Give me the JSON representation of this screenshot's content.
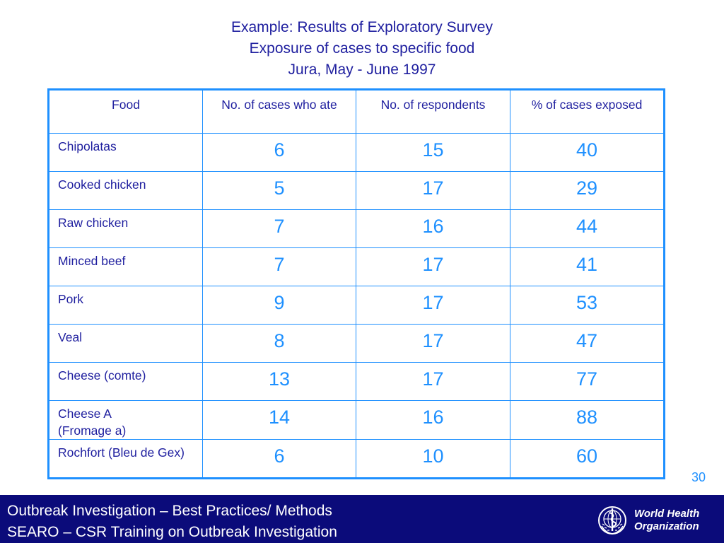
{
  "title_lines": [
    "Example: Results of Exploratory Survey",
    "Exposure of cases to specific food",
    "Jura, May - June 1997"
  ],
  "table": {
    "headers": [
      "Food",
      "No. of cases   who ate",
      "No. of respondents",
      "% of cases exposed"
    ],
    "rows": [
      {
        "food": "Chipolatas",
        "cases": "6",
        "respondents": "15",
        "pct": "40"
      },
      {
        "food": "Cooked chicken",
        "cases": "5",
        "respondents": "17",
        "pct": "29"
      },
      {
        "food": "Raw chicken",
        "cases": "7",
        "respondents": "16",
        "pct": "44"
      },
      {
        "food": "Minced beef",
        "cases": "7",
        "respondents": "17",
        "pct": "41"
      },
      {
        "food": "Pork",
        "cases": "9",
        "respondents": "17",
        "pct": "53"
      },
      {
        "food": "Veal",
        "cases": "8",
        "respondents": "17",
        "pct": "47"
      },
      {
        "food": "Cheese (comte)",
        "cases": "13",
        "respondents": "17",
        "pct": "77"
      },
      {
        "food": "Cheese A (Fromage a)",
        "cases": "14",
        "respondents": "16",
        "pct": "88"
      },
      {
        "food": "Rochfort (Bleu de Gex)",
        "cases": "6",
        "respondents": "10",
        "pct": "60"
      }
    ]
  },
  "slide_number": "30",
  "footer": {
    "line1": "Outbreak Investigation – Best Practices/ Methods",
    "line2": "SEARO – CSR Training on Outbreak Investigation",
    "logo_text_line1": "World Health",
    "logo_text_line2": "Organization",
    "logo_icon": "who-emblem-icon"
  },
  "colors": {
    "title_text": "#1f1f9f",
    "table_border": "#1e90ff",
    "number_text": "#1e90ff",
    "footer_bg": "#0b0b7a"
  }
}
